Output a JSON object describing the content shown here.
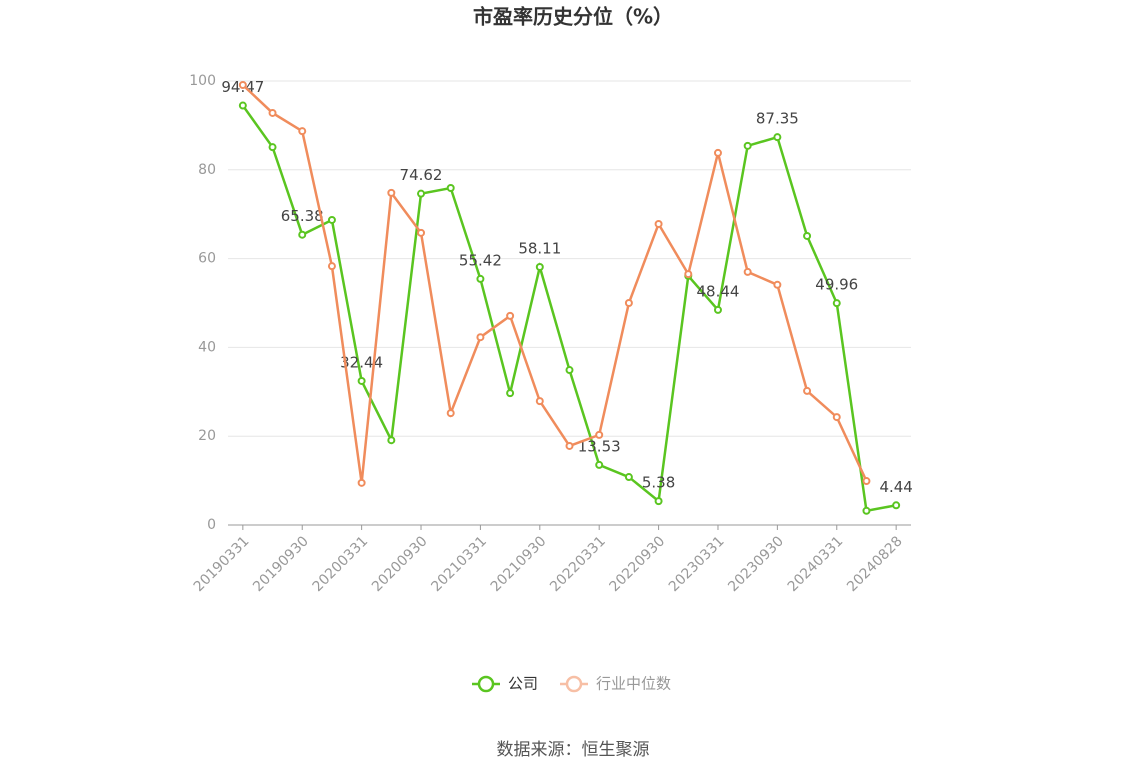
{
  "chart_data": {
    "type": "line",
    "title": "市盈率历史分位（%）",
    "categories": [
      "20190331",
      null,
      "20190930",
      null,
      "20200331",
      null,
      "20200930",
      null,
      "20210331",
      null,
      "20210930",
      null,
      "20220331",
      null,
      "20220930",
      null,
      "20230331",
      null,
      "20230930",
      null,
      "20240331",
      null,
      "20240828"
    ],
    "series": [
      {
        "name": "公司",
        "color": "#5ac520",
        "values": [
          94.47,
          85.1,
          65.38,
          68.7,
          32.44,
          19.1,
          74.62,
          75.9,
          55.42,
          29.7,
          58.11,
          34.9,
          13.53,
          10.8,
          5.38,
          56.1,
          48.44,
          85.4,
          87.35,
          65.1,
          49.96,
          3.2,
          4.44
        ]
      },
      {
        "name": "行业中位数",
        "color": "#f08c5c",
        "values": [
          99.1,
          92.8,
          88.7,
          58.3,
          9.5,
          74.8,
          65.8,
          25.2,
          42.3,
          47.1,
          27.9,
          17.8,
          20.3,
          50.0,
          67.8,
          56.5,
          83.8,
          57.0,
          54.1,
          30.2,
          24.3,
          9.9,
          null
        ]
      }
    ],
    "ylim": [
      0,
      100
    ],
    "yticks": [
      0,
      20,
      40,
      60,
      80,
      100
    ],
    "grid": true,
    "source": "数据来源：恒生聚源"
  }
}
